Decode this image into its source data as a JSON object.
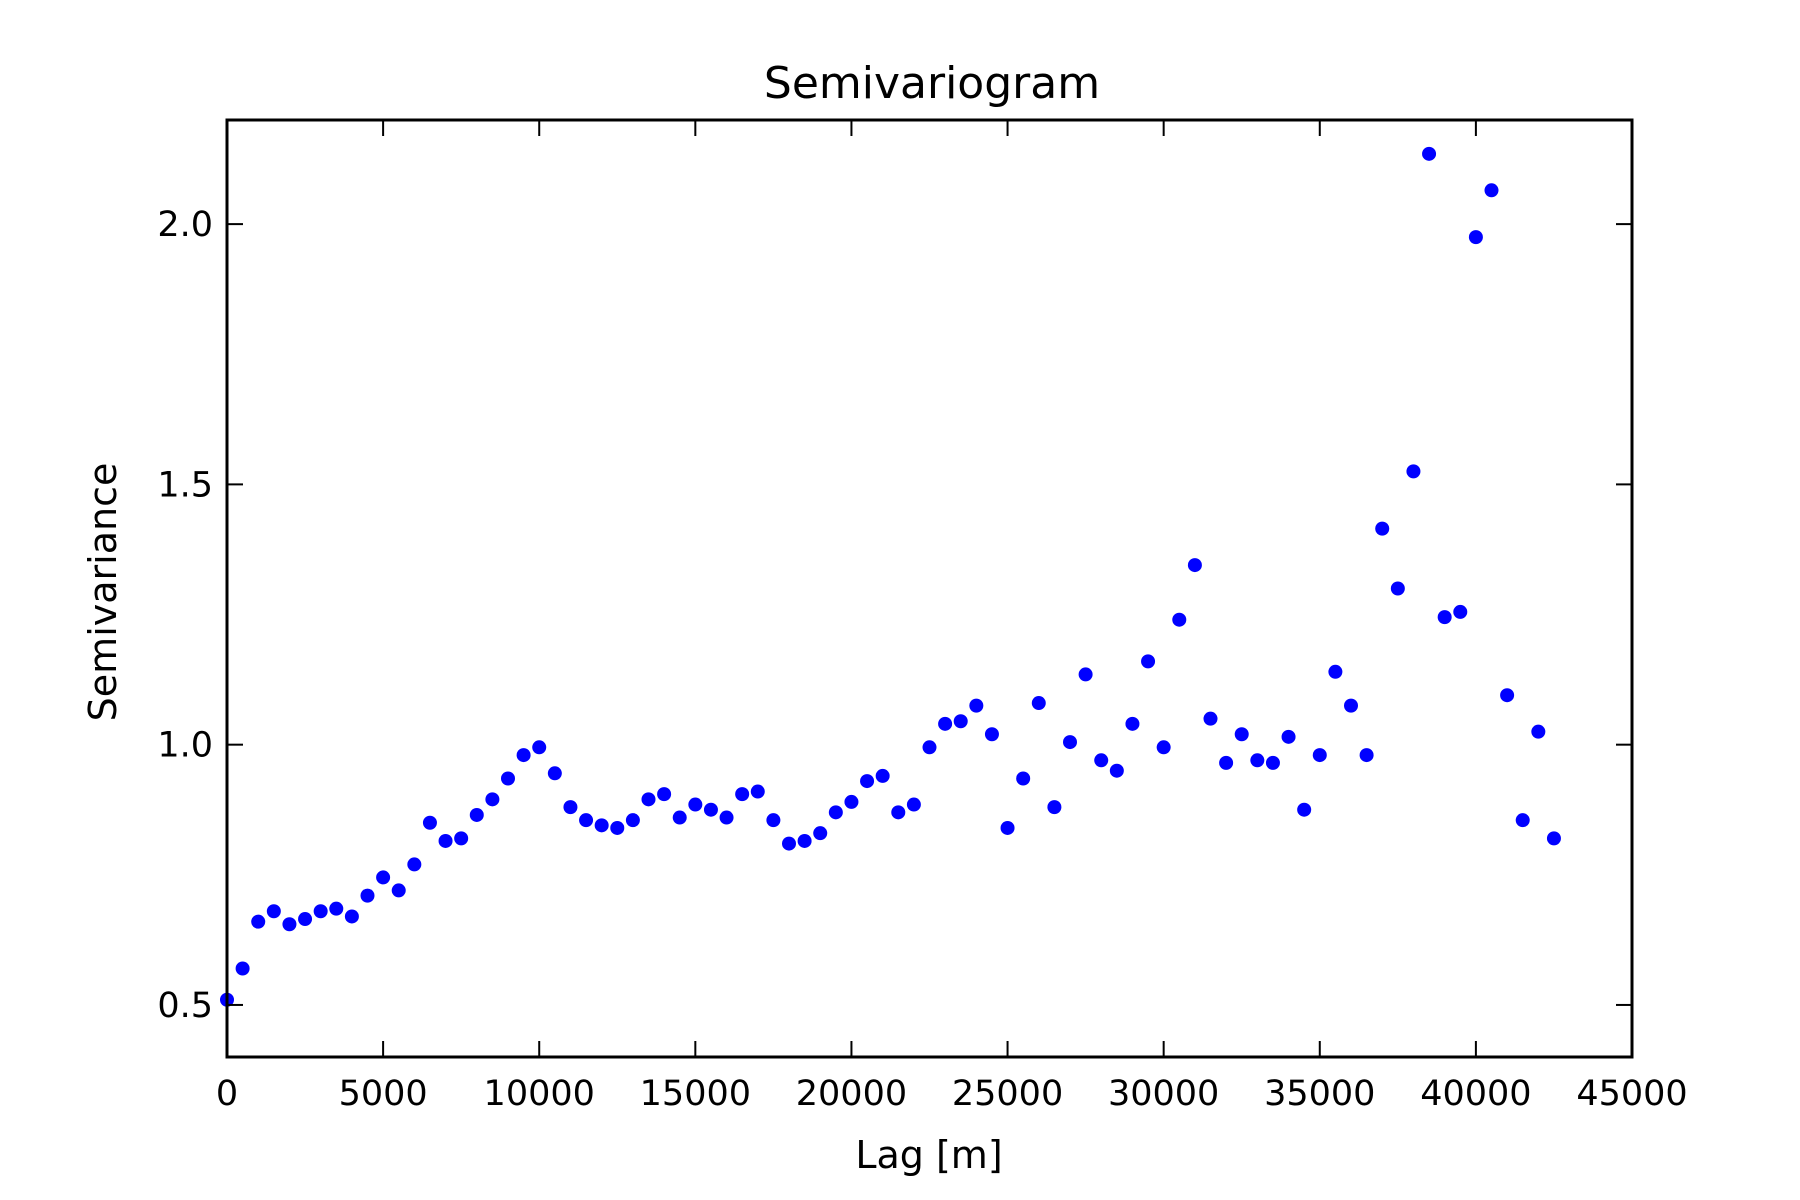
{
  "chart_data": {
    "type": "scatter",
    "title": "Semivariogram",
    "xlabel": "Lag [m]",
    "ylabel": "Semivariance",
    "xlim": [
      0,
      45000
    ],
    "ylim": [
      0.4,
      2.2
    ],
    "xticks": [
      0,
      5000,
      10000,
      15000,
      20000,
      25000,
      30000,
      35000,
      40000,
      45000
    ],
    "xtick_labels": [
      "0",
      "5000",
      "10000",
      "15000",
      "20000",
      "25000",
      "30000",
      "35000",
      "40000",
      "45000"
    ],
    "yticks": [
      0.5,
      1.0,
      1.5,
      2.0
    ],
    "ytick_labels": [
      "0.5",
      "1.0",
      "1.5",
      "2.0"
    ],
    "grid": false,
    "marker_color": "#0000ff",
    "series": [
      {
        "x": [
          0,
          500,
          1000,
          1500,
          2000,
          2500,
          3000,
          3500,
          4000,
          4500,
          5000,
          5500,
          6000,
          6500,
          7000,
          7500,
          8000,
          8500,
          9000,
          9500,
          10000,
          10500,
          11000,
          11500,
          12000,
          12500,
          13000,
          13500,
          14000,
          14500,
          15000,
          15500,
          16000,
          16500,
          17000,
          17500,
          18000,
          18500,
          19000,
          19500,
          20000,
          20500,
          21000,
          21500,
          22000,
          22500,
          23000,
          23500,
          24000,
          24500,
          25000,
          25500,
          26000,
          26500,
          27000,
          27500,
          28000,
          28500,
          29000,
          29500,
          30000,
          30500,
          31000,
          31500,
          32000,
          32500,
          33000,
          33500,
          34000,
          34500,
          35000,
          35500,
          36000,
          36500,
          37000,
          37500,
          38000,
          38500,
          39000,
          39500,
          40000,
          40500,
          41000,
          41500,
          42000,
          42500
        ],
        "y": [
          0.51,
          0.57,
          0.66,
          0.68,
          0.655,
          0.665,
          0.68,
          0.685,
          0.67,
          0.71,
          0.745,
          0.72,
          0.77,
          0.85,
          0.815,
          0.82,
          0.865,
          0.895,
          0.935,
          0.98,
          0.995,
          0.945,
          0.88,
          0.855,
          0.845,
          0.84,
          0.855,
          0.895,
          0.905,
          0.86,
          0.885,
          0.875,
          0.86,
          0.905,
          0.91,
          0.855,
          0.81,
          0.815,
          0.83,
          0.87,
          0.89,
          0.93,
          0.94,
          0.87,
          0.885,
          0.995,
          1.04,
          1.045,
          1.075,
          1.02,
          0.84,
          0.935,
          1.08,
          0.88,
          1.005,
          1.135,
          0.97,
          0.95,
          1.04,
          1.16,
          0.995,
          1.24,
          1.345,
          1.05,
          0.965,
          1.02,
          0.97,
          0.965,
          1.015,
          0.875,
          0.98,
          1.14,
          1.075,
          0.98,
          1.415,
          1.3,
          1.525,
          2.135,
          1.245,
          1.255,
          1.975,
          2.065,
          1.095,
          0.855,
          1.025,
          0.82
        ]
      }
    ]
  }
}
